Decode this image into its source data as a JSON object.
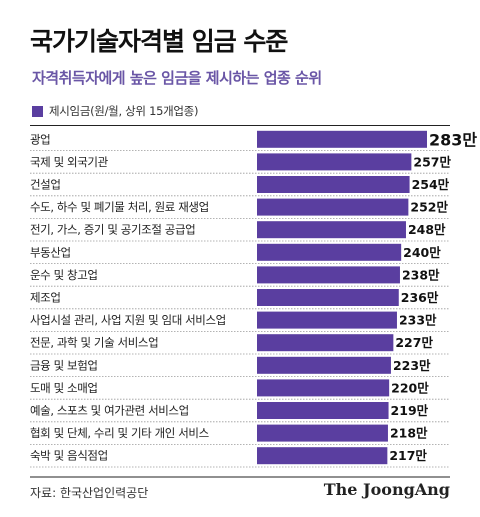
{
  "header": {
    "title": "국가기술자격별 임금 수준",
    "subtitle": "자격취득자에게 높은 임금을 제시하는 업종 순위"
  },
  "legend": {
    "label": "제시임금(원/월, 상위 15개업종)"
  },
  "footer": {
    "source": "자료: 한국산업인력공단",
    "brand": "The JoongAng"
  },
  "colors": {
    "bar": "#5a3ea0",
    "subtitle": "#6a56a6"
  },
  "chart_data": {
    "type": "bar",
    "orientation": "horizontal",
    "title": "국가기술자격별 임금 수준",
    "subtitle": "자격취득자에게 높은 임금을 제시하는 업종 순위",
    "legend": [
      "제시임금(원/월, 상위 15개업종)"
    ],
    "value_suffix": "만",
    "categories": [
      "광업",
      "국제 및 외국기관",
      "건설업",
      "수도, 하수 및 폐기물 처리, 원료 재생업",
      "전기, 가스, 증기 및 공기조절 공급업",
      "부동산업",
      "운수 및 창고업",
      "제조업",
      "사업시설 관리, 사업 지원 및 임대 서비스업",
      "전문, 과학 및 기술 서비스업",
      "금융 및 보험업",
      "도매 및 소매업",
      "예술, 스포츠 및 여가관련 서비스업",
      "협회 및 단체, 수리 및 기타 개인 서비스",
      "숙박 및 음식점업"
    ],
    "values": [
      283,
      257,
      254,
      252,
      248,
      240,
      238,
      236,
      233,
      227,
      223,
      220,
      219,
      218,
      217
    ],
    "value_labels": [
      "283만",
      "257만",
      "254만",
      "252만",
      "248만",
      "240만",
      "238만",
      "236만",
      "233만",
      "227만",
      "223만",
      "220만",
      "219만",
      "218만",
      "217만"
    ]
  }
}
